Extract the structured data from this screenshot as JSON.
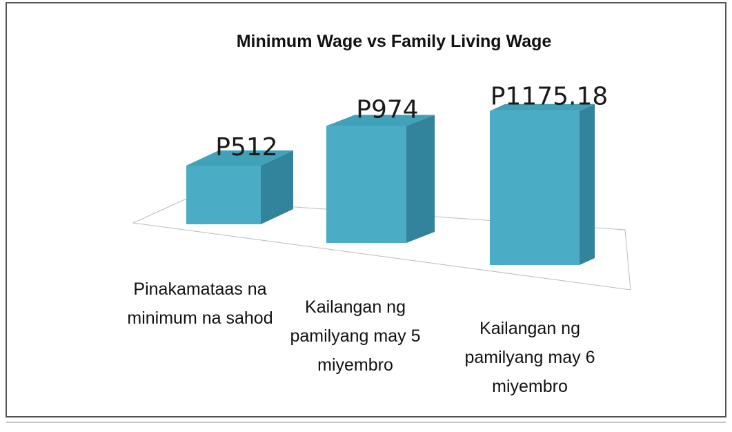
{
  "chart_data": {
    "type": "bar3d",
    "title": "Minimum Wage vs Family Living Wage",
    "categories": [
      "Pinakamataas na minimum na sahod",
      "Kailangan ng pamilyang may 5 miyembro",
      "Kailangan ng pamilyang may 6 miyembro"
    ],
    "values": [
      512,
      974,
      1175.18
    ],
    "value_labels": [
      "P512",
      "P974",
      "P1175.18"
    ],
    "color": "#4bacc6"
  }
}
